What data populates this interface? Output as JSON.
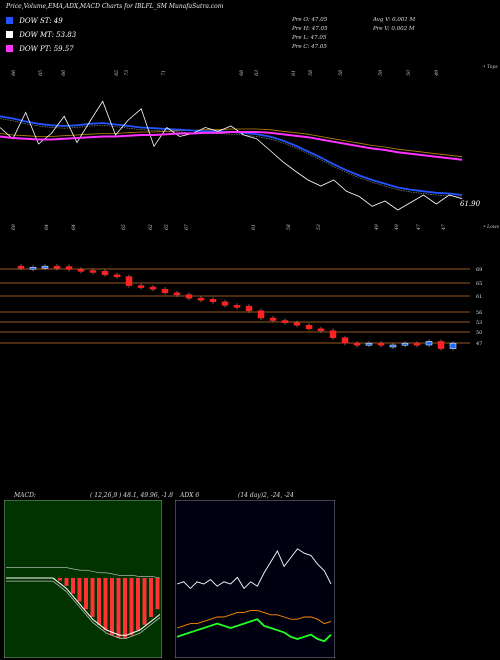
{
  "title": "Price,Volume,EMA,ADX,MACD Charts for IBLFL_SM MunafaSutra.com",
  "legend": [
    {
      "label": "DOW ST: 49",
      "color": "#2255ff"
    },
    {
      "label": "DOW MT: 53.83",
      "color": "#ffffff"
    },
    {
      "label": "DOW PT: 59.57",
      "color": "#ff33ff"
    }
  ],
  "info": {
    "o": "Pre O: 47.05",
    "h": "Pre H: 47.05",
    "l": "Pre L: 47.05",
    "c": "Pre C: 47.05",
    "avg_v": "Avg V: 0.001 M",
    "pre_v": "Pre V: 0.002 M"
  },
  "upper": {
    "top_label": "• Tops",
    "price_label": "61.90",
    "top_ticks": [
      "66",
      "65",
      "66",
      "65",
      "73",
      "71",
      "68",
      "63",
      "61",
      "58",
      "58",
      "59",
      "50",
      "49"
    ],
    "lower_ticks": [
      "69",
      "64",
      "64",
      "65",
      "62",
      "65",
      "67",
      "61",
      "58",
      "53",
      "49",
      "49",
      "47",
      "47"
    ],
    "bottom_label": "• Lows"
  },
  "levels": [
    "69",
    "65",
    "61",
    "56",
    "53",
    "50",
    "47"
  ],
  "macd": {
    "title_left": "MACD:",
    "title_right": "( 12,26,9 ) 48.1, 49.96, -1.8"
  },
  "adx": {
    "title_left": "ADX   6",
    "title_right": "(14 day)2, -24, -24"
  },
  "chart_data": [
    {
      "type": "line",
      "title": "Price,Volume,EMA,ADX,MACD Charts for IBLFL_SM MunafaSutra.com",
      "series": [
        {
          "name": "DOW ST: 49",
          "values": [
            70.5,
            70.2,
            69.8,
            69.5,
            69.3,
            69.2,
            69.3,
            69.5,
            69.6,
            69.4,
            69.2,
            69.0,
            68.9,
            68.8,
            68.7,
            68.6,
            68.5,
            68.5,
            68.4,
            68.3,
            68.1,
            67.8,
            67.3,
            66.6,
            65.8,
            65.0,
            64.1,
            63.3,
            62.6,
            62.0,
            61.5,
            61.0,
            60.7,
            60.5,
            60.3,
            60.2,
            60.0
          ]
        },
        {
          "name": "DOW MT: 53.83",
          "values": [
            69.0,
            67.5,
            71.0,
            66.8,
            68.2,
            70.5,
            67.0,
            69.8,
            72.5,
            68.0,
            70.0,
            71.5,
            66.5,
            69.0,
            67.8,
            68.2,
            69.0,
            68.5,
            69.2,
            68.0,
            67.5,
            66.0,
            64.5,
            63.2,
            62.0,
            61.2,
            62.0,
            60.5,
            59.8,
            58.5,
            59.2,
            58.0,
            59.0,
            60.0,
            58.8,
            60.0,
            59.5
          ]
        },
        {
          "name": "DOW PT: 59.57",
          "values": [
            67.8,
            67.6,
            67.5,
            67.4,
            67.4,
            67.5,
            67.6,
            67.7,
            67.8,
            67.8,
            67.9,
            68.0,
            68.0,
            68.1,
            68.2,
            68.2,
            68.3,
            68.3,
            68.4,
            68.4,
            68.4,
            68.3,
            68.1,
            67.9,
            67.7,
            67.4,
            67.1,
            66.8,
            66.5,
            66.2,
            66.0,
            65.7,
            65.5,
            65.3,
            65.1,
            64.9,
            64.7
          ]
        }
      ]
    },
    {
      "type": "bar",
      "categories": [
        "1",
        "2",
        "3",
        "4",
        "5",
        "6",
        "7",
        "8",
        "9",
        "10",
        "11",
        "12",
        "13",
        "14",
        "15",
        "16",
        "17",
        "18",
        "19",
        "20",
        "21",
        "22",
        "23",
        "24",
        "25",
        "26",
        "27",
        "28",
        "29",
        "30",
        "31",
        "32",
        "33",
        "34",
        "35",
        "36",
        "37"
      ],
      "series": [
        {
          "values": [
            69.0,
            69.1,
            69.4,
            69.3,
            68.5,
            68.2,
            68.0,
            67.0,
            66.5,
            64.0,
            63.6,
            63.0,
            62.0,
            61.5,
            60.5,
            60.2,
            59.5,
            58.5,
            58.3,
            57.0,
            55.0,
            54.3,
            53.7,
            53.0,
            52.0,
            51.5,
            49.5,
            48.0,
            47.5,
            48.0,
            47.5,
            47.5,
            48.0,
            47.5,
            48.5,
            46.5,
            48.0
          ]
        }
      ]
    },
    {
      "type": "line",
      "title": "MACD:",
      "series": [
        {
          "values": [
            0,
            0,
            0,
            0,
            0,
            0,
            0,
            0,
            -1,
            -3,
            -6,
            -9,
            -12,
            -15,
            -18,
            -20,
            -22,
            -23,
            -23,
            -22,
            -20,
            -18,
            -15,
            -12
          ]
        },
        {
          "values": [
            0,
            0,
            0,
            0,
            0,
            0,
            0,
            0,
            -2,
            -4,
            -7,
            -10,
            -13,
            -16,
            -18,
            -20,
            -21,
            -22,
            -22,
            -21,
            -20,
            -18,
            -16,
            -14
          ]
        },
        {
          "values": [
            4,
            4,
            4,
            4,
            4,
            4,
            4,
            4,
            4,
            4,
            3.5,
            3,
            3,
            2.5,
            2,
            2,
            1.5,
            1,
            1,
            1,
            0.5,
            0.5,
            0.5,
            0
          ]
        }
      ]
    },
    {
      "type": "line",
      "title": "ADX   6",
      "series": [
        {
          "values": [
            30,
            31,
            28,
            31,
            30,
            32,
            29,
            31,
            30,
            33,
            28,
            31,
            29,
            35,
            40,
            45,
            38,
            42,
            46,
            44,
            43,
            39,
            36,
            30
          ]
        },
        {
          "values": [
            10,
            11,
            12,
            12,
            13,
            14,
            15,
            15,
            16,
            17,
            17,
            18,
            18,
            17,
            16,
            16,
            15,
            14,
            14,
            15,
            15,
            14,
            12,
            13
          ]
        },
        {
          "values": [
            6,
            7,
            8,
            9,
            10,
            11,
            12,
            11,
            10,
            11,
            12,
            13,
            14,
            11,
            10,
            9,
            8,
            6,
            5,
            6,
            7,
            5,
            4,
            7
          ]
        }
      ]
    }
  ]
}
